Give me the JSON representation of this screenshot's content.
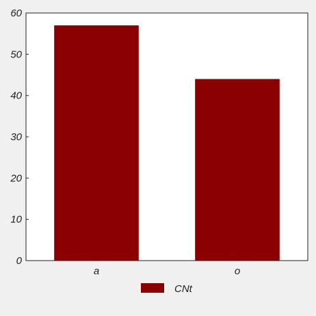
{
  "chart_data": {
    "type": "bar",
    "categories": [
      "a",
      "o"
    ],
    "series": [
      {
        "name": "CNt",
        "values": [
          57,
          44
        ],
        "color": "#8b0000"
      }
    ],
    "title": "",
    "xlabel": "",
    "ylabel": "",
    "ylim": [
      0,
      60
    ],
    "yticks": [
      0,
      10,
      20,
      30,
      40,
      50,
      60
    ],
    "grid": false,
    "legend_position": "bottom-center",
    "plot_background": "#ffffff",
    "figure_background": "#f0f0f0"
  }
}
